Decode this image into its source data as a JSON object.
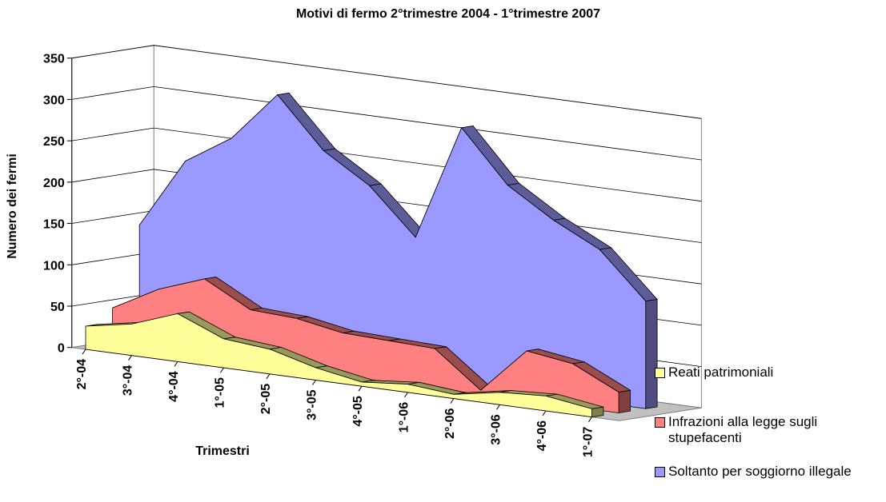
{
  "chart_data": {
    "type": "area3d",
    "title": "Motivi di fermo 2°trimestre 2004 - 1°trimestre 2007",
    "x_label": "Trimestri",
    "y_label": "Numero dei fermi",
    "categories": [
      "2°-04",
      "3°-04",
      "4°-04",
      "1°-05",
      "2°-05",
      "3°-05",
      "4°-05",
      "1°-06",
      "2°-06",
      "3°-06",
      "4°-06",
      "1°-07"
    ],
    "series": [
      {
        "name": "Reati patrimoniali",
        "color": "#ffff99",
        "values": [
          28,
          38,
          58,
          35,
          30,
          15,
          5,
          10,
          5,
          15,
          18,
          10
        ]
      },
      {
        "name": "Infrazioni alla legge sugli stupefacenti",
        "color": "#ff8080",
        "values": [
          45,
          75,
          95,
          65,
          62,
          52,
          50,
          48,
          5,
          60,
          52,
          25
        ]
      },
      {
        "name": "Soltanto per soggiorno illegale",
        "color": "#9999ff",
        "values": [
          140,
          225,
          260,
          320,
          260,
          225,
          170,
          310,
          248,
          213,
          185,
          130
        ]
      }
    ],
    "ylim": [
      0,
      350
    ],
    "yticks": [
      0,
      50,
      100,
      150,
      200,
      250,
      300,
      350
    ],
    "grid": true
  }
}
